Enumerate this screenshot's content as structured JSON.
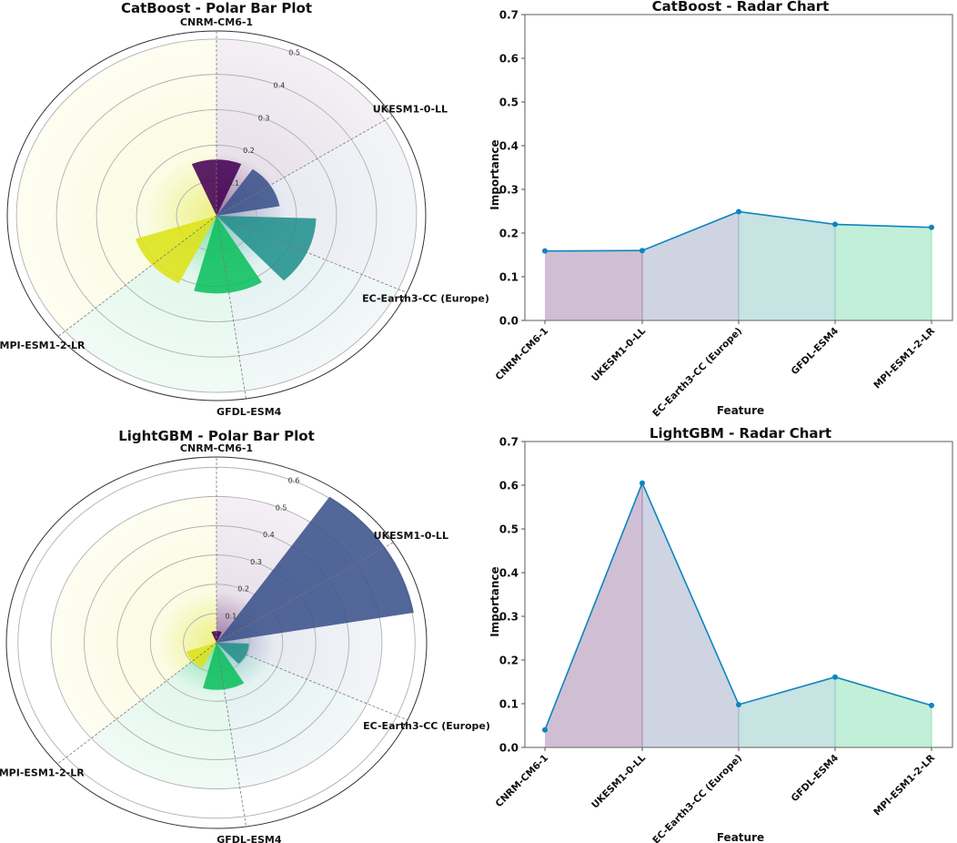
{
  "chart_data": [
    {
      "type": "polar-bar",
      "title": "CatBoost - Polar Bar Plot",
      "categories": [
        "CNRM-CM6-1",
        "UKESM1-0-LL",
        "EC-Earth3-CC (Europe)",
        "GFDL-ESM4",
        "MPI-ESM1-2-LR"
      ],
      "values": [
        0.159,
        0.16,
        0.249,
        0.22,
        0.213
      ],
      "r_ticks": [
        "0.1",
        "0.2",
        "0.3",
        "0.4",
        "0.5"
      ],
      "r_tick_values": [
        0.1,
        0.2,
        0.3,
        0.4,
        0.5
      ],
      "rlim": [
        0,
        0.523
      ],
      "grid": true
    },
    {
      "type": "area",
      "title": "CatBoost - Radar Chart",
      "categories": [
        "CNRM-CM6-1",
        "UKESM1-0-LL",
        "EC-Earth3-CC (Europe)",
        "GFDL-ESM4",
        "MPI-ESM1-2-LR"
      ],
      "values": [
        0.159,
        0.16,
        0.249,
        0.22,
        0.213
      ],
      "xlabel": "Feature",
      "ylabel": "Importance",
      "ylim": [
        0,
        0.7
      ],
      "y_ticks": [
        "0.0",
        "0.1",
        "0.2",
        "0.3",
        "0.4",
        "0.5",
        "0.6",
        "0.7"
      ],
      "grid": false
    },
    {
      "type": "polar-bar",
      "title": "LightGBM - Polar Bar Plot",
      "categories": [
        "CNRM-CM6-1",
        "UKESM1-0-LL",
        "EC-Earth3-CC (Europe)",
        "GFDL-ESM4",
        "MPI-ESM1-2-LR"
      ],
      "values": [
        0.04,
        0.605,
        0.098,
        0.161,
        0.096
      ],
      "r_ticks": [
        "0.1",
        "0.2",
        "0.3",
        "0.4",
        "0.5",
        "0.6"
      ],
      "r_tick_values": [
        0.1,
        0.2,
        0.3,
        0.4,
        0.5,
        0.6
      ],
      "rlim": [
        0,
        0.635
      ],
      "grid": true
    },
    {
      "type": "area",
      "title": "LightGBM - Radar Chart",
      "categories": [
        "CNRM-CM6-1",
        "UKESM1-0-LL",
        "EC-Earth3-CC (Europe)",
        "GFDL-ESM4",
        "MPI-ESM1-2-LR"
      ],
      "values": [
        0.04,
        0.605,
        0.098,
        0.161,
        0.096
      ],
      "xlabel": "Feature",
      "ylabel": "Importance",
      "ylim": [
        0,
        0.7
      ],
      "y_ticks": [
        "0.0",
        "0.1",
        "0.2",
        "0.3",
        "0.4",
        "0.5",
        "0.6",
        "0.7"
      ],
      "grid": false
    }
  ],
  "colors": {
    "categories": [
      "#440154",
      "#3b528b",
      "#21918c",
      "#0cbf5f",
      "#dde318"
    ],
    "line": "#0e84c0"
  }
}
